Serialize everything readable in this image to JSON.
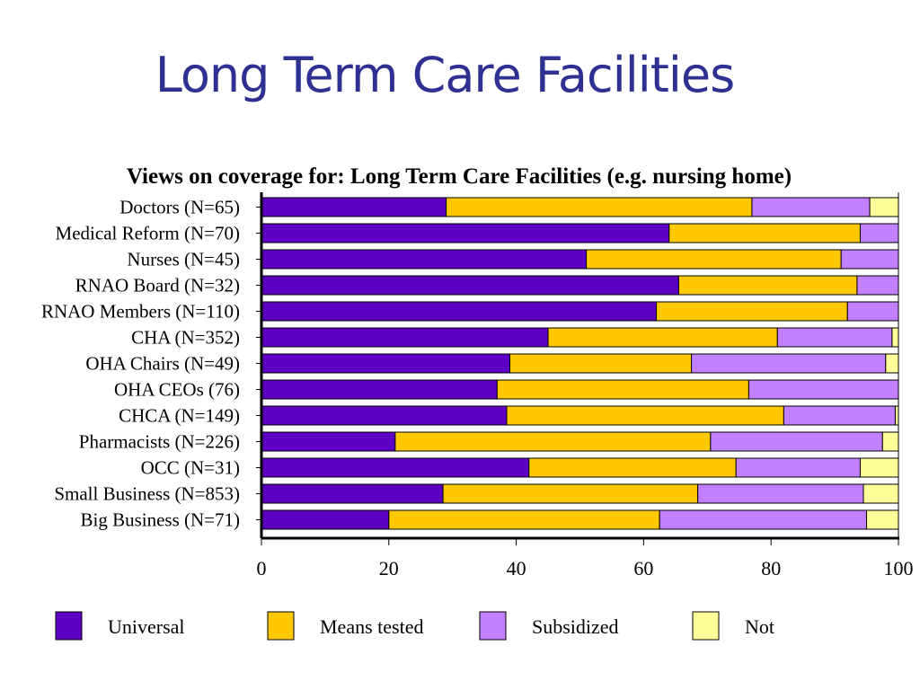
{
  "slide": {
    "title": "Long Term Care Facilities"
  },
  "colors": {
    "Universal": "#5e00c4",
    "Means tested": "#ffc800",
    "Subsidized": "#c080ff",
    "Not": "#ffff99"
  },
  "chart_data": {
    "type": "bar",
    "orientation": "horizontal",
    "stacked": true,
    "title": "Views on coverage for: Long Term Care Facilities (e.g. nursing home)",
    "xlim": [
      0,
      100
    ],
    "xticks": [
      "0",
      "20",
      "40",
      "60",
      "80",
      "100"
    ],
    "legend_position": "bottom",
    "grid": false,
    "categories": [
      "Doctors (N=65)",
      "Medical Reform (N=70)",
      "Nurses (N=45)",
      "RNAO Board (N=32)",
      "RNAO Members (N=110)",
      "CHA (N=352)",
      "OHA Chairs (N=49)",
      "OHA CEOs (76)",
      "CHCA (N=149)",
      "Pharmacists (N=226)",
      "OCC (N=31)",
      "Small Business (N=853)",
      "Big Business (N=71)"
    ],
    "series": [
      {
        "name": "Universal",
        "values": [
          29,
          64,
          51,
          65.5,
          62,
          45,
          39,
          37,
          38.5,
          21,
          42,
          28.5,
          20
        ]
      },
      {
        "name": "Means tested",
        "values": [
          48,
          30,
          40,
          28,
          30,
          36,
          28.5,
          39.5,
          43.5,
          49.5,
          32.5,
          40,
          42.5
        ]
      },
      {
        "name": "Subsidized",
        "values": [
          18.5,
          6,
          9,
          6.5,
          8,
          18,
          30.5,
          23.5,
          17.5,
          27,
          19.5,
          26,
          32.5
        ]
      },
      {
        "name": "Not",
        "values": [
          4.5,
          0,
          0,
          0,
          0,
          1,
          2,
          0,
          0.5,
          2.5,
          6,
          5.5,
          5
        ]
      }
    ]
  }
}
